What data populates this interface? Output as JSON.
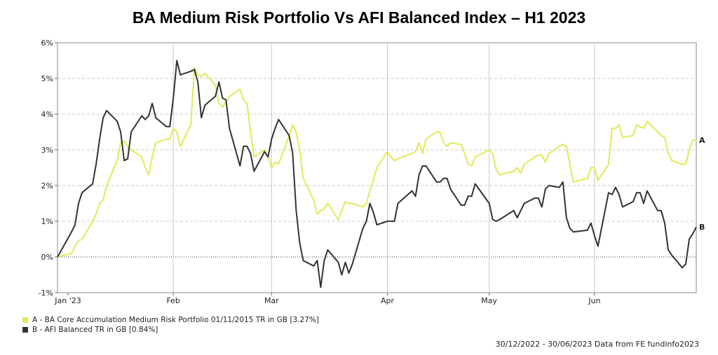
{
  "chart_data": {
    "type": "line",
    "title": "BA Medium Risk Portfolio Vs AFI Balanced Index – H1 2023",
    "xlabel": "",
    "ylabel": "",
    "x_range": [
      "2022-12-30",
      "2023-06-30"
    ],
    "ylim": [
      -1,
      6
    ],
    "y_ticks": [
      "-1%",
      "0%",
      "1%",
      "2%",
      "3%",
      "4%",
      "5%",
      "6%"
    ],
    "x_ticks": [
      {
        "label": "Jan '23",
        "date": "2023-01-02"
      },
      {
        "label": "Feb",
        "date": "2023-02-01"
      },
      {
        "label": "Mar",
        "date": "2023-03-01"
      },
      {
        "label": "Apr",
        "date": "2023-04-03"
      },
      {
        "label": "May",
        "date": "2023-05-02"
      },
      {
        "label": "Jun",
        "date": "2023-06-01"
      }
    ],
    "grid": true,
    "legend_position": "bottom-left",
    "series": [
      {
        "name": "A - BA Core Accumulation Medium Risk Portfolio 01/11/2015 TR in GB [3.27%]",
        "end_label": "A",
        "color": "#e4e85a",
        "points": [
          [
            "2022-12-30",
            0.0
          ],
          [
            "2023-01-03",
            0.1
          ],
          [
            "2023-01-04",
            0.3
          ],
          [
            "2023-01-05",
            0.45
          ],
          [
            "2023-01-06",
            0.5
          ],
          [
            "2023-01-09",
            1.0
          ],
          [
            "2023-01-10",
            1.2
          ],
          [
            "2023-01-11",
            1.5
          ],
          [
            "2023-01-12",
            1.6
          ],
          [
            "2023-01-13",
            2.0
          ],
          [
            "2023-01-16",
            2.7
          ],
          [
            "2023-01-17",
            3.2
          ],
          [
            "2023-01-18",
            3.25
          ],
          [
            "2023-01-19",
            3.1
          ],
          [
            "2023-01-20",
            3.0
          ],
          [
            "2023-01-23",
            2.8
          ],
          [
            "2023-01-24",
            2.5
          ],
          [
            "2023-01-25",
            2.3
          ],
          [
            "2023-01-26",
            2.8
          ],
          [
            "2023-01-27",
            3.2
          ],
          [
            "2023-01-30",
            3.3
          ],
          [
            "2023-01-31",
            3.3
          ],
          [
            "2023-02-01",
            3.6
          ],
          [
            "2023-02-02",
            3.5
          ],
          [
            "2023-02-03",
            3.1
          ],
          [
            "2023-02-06",
            3.7
          ],
          [
            "2023-02-07",
            5.3
          ],
          [
            "2023-02-08",
            5.1
          ],
          [
            "2023-02-09",
            5.05
          ],
          [
            "2023-02-10",
            5.15
          ],
          [
            "2023-02-13",
            4.8
          ],
          [
            "2023-02-14",
            4.3
          ],
          [
            "2023-02-15",
            4.2
          ],
          [
            "2023-02-16",
            4.35
          ],
          [
            "2023-02-17",
            4.5
          ],
          [
            "2023-02-20",
            4.7
          ],
          [
            "2023-02-21",
            4.4
          ],
          [
            "2023-02-22",
            4.3
          ],
          [
            "2023-02-23",
            3.5
          ],
          [
            "2023-02-24",
            2.8
          ],
          [
            "2023-02-27",
            3.0
          ],
          [
            "2023-02-28",
            2.8
          ],
          [
            "2023-03-01",
            2.5
          ],
          [
            "2023-03-02",
            2.65
          ],
          [
            "2023-03-03",
            2.6
          ],
          [
            "2023-03-06",
            3.4
          ],
          [
            "2023-03-07",
            3.7
          ],
          [
            "2023-03-08",
            3.5
          ],
          [
            "2023-03-09",
            3.0
          ],
          [
            "2023-03-10",
            2.2
          ],
          [
            "2023-03-13",
            1.6
          ],
          [
            "2023-03-14",
            1.2
          ],
          [
            "2023-03-15",
            1.3
          ],
          [
            "2023-03-16",
            1.35
          ],
          [
            "2023-03-17",
            1.5
          ],
          [
            "2023-03-20",
            1.05
          ],
          [
            "2023-03-21",
            1.3
          ],
          [
            "2023-03-22",
            1.55
          ],
          [
            "2023-03-23",
            1.5
          ],
          [
            "2023-03-24",
            1.5
          ],
          [
            "2023-03-27",
            1.4
          ],
          [
            "2023-03-28",
            1.5
          ],
          [
            "2023-03-29",
            1.85
          ],
          [
            "2023-03-30",
            2.15
          ],
          [
            "2023-03-31",
            2.5
          ],
          [
            "2023-04-03",
            2.95
          ],
          [
            "2023-04-04",
            2.8
          ],
          [
            "2023-04-05",
            2.7
          ],
          [
            "2023-04-06",
            2.75
          ],
          [
            "2023-04-10",
            2.9
          ],
          [
            "2023-04-11",
            2.95
          ],
          [
            "2023-04-12",
            3.2
          ],
          [
            "2023-04-13",
            2.9
          ],
          [
            "2023-04-14",
            3.3
          ],
          [
            "2023-04-17",
            3.5
          ],
          [
            "2023-04-18",
            3.5
          ],
          [
            "2023-04-19",
            3.2
          ],
          [
            "2023-04-20",
            3.1
          ],
          [
            "2023-04-21",
            3.2
          ],
          [
            "2023-04-24",
            3.15
          ],
          [
            "2023-04-25",
            2.9
          ],
          [
            "2023-04-26",
            2.6
          ],
          [
            "2023-04-27",
            2.55
          ],
          [
            "2023-04-28",
            2.8
          ],
          [
            "2023-05-02",
            3.0
          ],
          [
            "2023-05-03",
            2.9
          ],
          [
            "2023-05-04",
            2.45
          ],
          [
            "2023-05-05",
            2.3
          ],
          [
            "2023-05-09",
            2.4
          ],
          [
            "2023-05-10",
            2.5
          ],
          [
            "2023-05-11",
            2.35
          ],
          [
            "2023-05-12",
            2.6
          ],
          [
            "2023-05-15",
            2.8
          ],
          [
            "2023-05-16",
            2.85
          ],
          [
            "2023-05-17",
            2.85
          ],
          [
            "2023-05-18",
            2.65
          ],
          [
            "2023-05-19",
            2.9
          ],
          [
            "2023-05-22",
            3.1
          ],
          [
            "2023-05-23",
            3.15
          ],
          [
            "2023-05-24",
            3.1
          ],
          [
            "2023-05-25",
            2.6
          ],
          [
            "2023-05-26",
            2.1
          ],
          [
            "2023-05-30",
            2.2
          ],
          [
            "2023-05-31",
            2.5
          ],
          [
            "2023-06-01",
            2.5
          ],
          [
            "2023-06-02",
            2.15
          ],
          [
            "2023-06-05",
            2.6
          ],
          [
            "2023-06-06",
            3.6
          ],
          [
            "2023-06-07",
            3.6
          ],
          [
            "2023-06-08",
            3.7
          ],
          [
            "2023-06-09",
            3.35
          ],
          [
            "2023-06-12",
            3.4
          ],
          [
            "2023-06-13",
            3.7
          ],
          [
            "2023-06-14",
            3.65
          ],
          [
            "2023-06-15",
            3.6
          ],
          [
            "2023-06-16",
            3.8
          ],
          [
            "2023-06-19",
            3.5
          ],
          [
            "2023-06-20",
            3.4
          ],
          [
            "2023-06-21",
            3.35
          ],
          [
            "2023-06-22",
            2.9
          ],
          [
            "2023-06-23",
            2.7
          ],
          [
            "2023-06-26",
            2.6
          ],
          [
            "2023-06-27",
            2.6
          ],
          [
            "2023-06-28",
            3.0
          ],
          [
            "2023-06-29",
            3.27
          ],
          [
            "2023-06-30",
            3.27
          ]
        ]
      },
      {
        "name": "B - AFI Balanced TR in GB [0.84%]",
        "end_label": "B",
        "color": "#333333",
        "points": [
          [
            "2022-12-30",
            0.0
          ],
          [
            "2023-01-03",
            0.7
          ],
          [
            "2023-01-04",
            0.9
          ],
          [
            "2023-01-05",
            1.5
          ],
          [
            "2023-01-06",
            1.8
          ],
          [
            "2023-01-09",
            2.05
          ],
          [
            "2023-01-10",
            2.6
          ],
          [
            "2023-01-11",
            3.3
          ],
          [
            "2023-01-12",
            3.9
          ],
          [
            "2023-01-13",
            4.1
          ],
          [
            "2023-01-16",
            3.8
          ],
          [
            "2023-01-17",
            3.5
          ],
          [
            "2023-01-18",
            2.7
          ],
          [
            "2023-01-19",
            2.75
          ],
          [
            "2023-01-20",
            3.5
          ],
          [
            "2023-01-23",
            3.95
          ],
          [
            "2023-01-24",
            3.85
          ],
          [
            "2023-01-25",
            3.95
          ],
          [
            "2023-01-26",
            4.3
          ],
          [
            "2023-01-27",
            3.9
          ],
          [
            "2023-01-30",
            3.65
          ],
          [
            "2023-01-31",
            3.65
          ],
          [
            "2023-02-01",
            4.45
          ],
          [
            "2023-02-02",
            5.5
          ],
          [
            "2023-02-03",
            5.1
          ],
          [
            "2023-02-06",
            5.2
          ],
          [
            "2023-02-07",
            5.25
          ],
          [
            "2023-02-08",
            4.9
          ],
          [
            "2023-02-09",
            3.9
          ],
          [
            "2023-02-10",
            4.25
          ],
          [
            "2023-02-13",
            4.5
          ],
          [
            "2023-02-14",
            4.9
          ],
          [
            "2023-02-15",
            4.45
          ],
          [
            "2023-02-16",
            4.4
          ],
          [
            "2023-02-17",
            3.6
          ],
          [
            "2023-02-20",
            2.55
          ],
          [
            "2023-02-21",
            3.1
          ],
          [
            "2023-02-22",
            3.1
          ],
          [
            "2023-02-23",
            2.9
          ],
          [
            "2023-02-24",
            2.4
          ],
          [
            "2023-02-27",
            2.95
          ],
          [
            "2023-02-28",
            2.8
          ],
          [
            "2023-03-01",
            3.3
          ],
          [
            "2023-03-02",
            3.6
          ],
          [
            "2023-03-03",
            3.85
          ],
          [
            "2023-03-06",
            3.4
          ],
          [
            "2023-03-07",
            2.9
          ],
          [
            "2023-03-08",
            1.3
          ],
          [
            "2023-03-09",
            0.4
          ],
          [
            "2023-03-10",
            -0.1
          ],
          [
            "2023-03-13",
            -0.25
          ],
          [
            "2023-03-14",
            -0.1
          ],
          [
            "2023-03-15",
            -0.85
          ],
          [
            "2023-03-16",
            -0.1
          ],
          [
            "2023-03-17",
            0.2
          ],
          [
            "2023-03-20",
            -0.15
          ],
          [
            "2023-03-21",
            -0.5
          ],
          [
            "2023-03-22",
            -0.15
          ],
          [
            "2023-03-23",
            -0.45
          ],
          [
            "2023-03-24",
            -0.2
          ],
          [
            "2023-03-27",
            0.8
          ],
          [
            "2023-03-28",
            1.0
          ],
          [
            "2023-03-29",
            1.5
          ],
          [
            "2023-03-30",
            1.25
          ],
          [
            "2023-03-31",
            0.9
          ],
          [
            "2023-04-03",
            1.0
          ],
          [
            "2023-04-04",
            1.0
          ],
          [
            "2023-04-05",
            1.0
          ],
          [
            "2023-04-06",
            1.5
          ],
          [
            "2023-04-10",
            1.85
          ],
          [
            "2023-04-11",
            1.7
          ],
          [
            "2023-04-12",
            2.3
          ],
          [
            "2023-04-13",
            2.55
          ],
          [
            "2023-04-14",
            2.55
          ],
          [
            "2023-04-17",
            2.1
          ],
          [
            "2023-04-18",
            2.1
          ],
          [
            "2023-04-19",
            2.2
          ],
          [
            "2023-04-20",
            2.2
          ],
          [
            "2023-04-21",
            1.9
          ],
          [
            "2023-04-24",
            1.45
          ],
          [
            "2023-04-25",
            1.45
          ],
          [
            "2023-04-26",
            1.7
          ],
          [
            "2023-04-27",
            1.7
          ],
          [
            "2023-04-28",
            2.05
          ],
          [
            "2023-05-02",
            1.5
          ],
          [
            "2023-05-03",
            1.05
          ],
          [
            "2023-05-04",
            1.0
          ],
          [
            "2023-05-05",
            1.05
          ],
          [
            "2023-05-09",
            1.3
          ],
          [
            "2023-05-10",
            1.1
          ],
          [
            "2023-05-11",
            1.3
          ],
          [
            "2023-05-12",
            1.5
          ],
          [
            "2023-05-15",
            1.65
          ],
          [
            "2023-05-16",
            1.65
          ],
          [
            "2023-05-17",
            1.4
          ],
          [
            "2023-05-18",
            1.9
          ],
          [
            "2023-05-19",
            2.0
          ],
          [
            "2023-05-22",
            1.95
          ],
          [
            "2023-05-23",
            2.1
          ],
          [
            "2023-05-24",
            1.1
          ],
          [
            "2023-05-25",
            0.8
          ],
          [
            "2023-05-26",
            0.7
          ],
          [
            "2023-05-30",
            0.75
          ],
          [
            "2023-05-31",
            0.95
          ],
          [
            "2023-06-01",
            0.6
          ],
          [
            "2023-06-02",
            0.3
          ],
          [
            "2023-06-05",
            1.8
          ],
          [
            "2023-06-06",
            1.75
          ],
          [
            "2023-06-07",
            1.95
          ],
          [
            "2023-06-08",
            1.75
          ],
          [
            "2023-06-09",
            1.4
          ],
          [
            "2023-06-12",
            1.55
          ],
          [
            "2023-06-13",
            1.8
          ],
          [
            "2023-06-14",
            1.8
          ],
          [
            "2023-06-15",
            1.5
          ],
          [
            "2023-06-16",
            1.85
          ],
          [
            "2023-06-19",
            1.3
          ],
          [
            "2023-06-20",
            1.3
          ],
          [
            "2023-06-21",
            0.95
          ],
          [
            "2023-06-22",
            0.2
          ],
          [
            "2023-06-23",
            0.05
          ],
          [
            "2023-06-26",
            -0.3
          ],
          [
            "2023-06-27",
            -0.2
          ],
          [
            "2023-06-28",
            0.5
          ],
          [
            "2023-06-29",
            0.65
          ],
          [
            "2023-06-30",
            0.84
          ]
        ]
      }
    ]
  },
  "source_text": "30/12/2022 - 30/06/2023 Data from FE fundinfo2023"
}
